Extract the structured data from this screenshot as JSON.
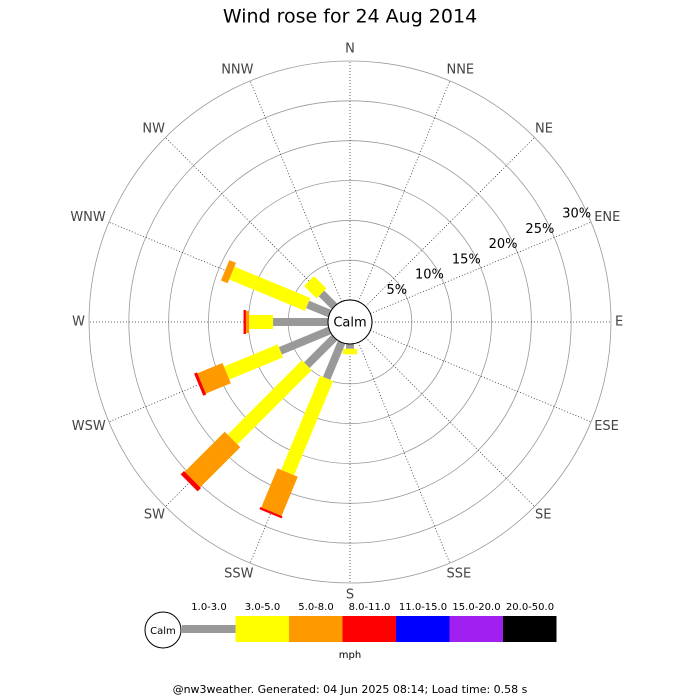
{
  "chart_data": {
    "type": "windrose",
    "title": "Wind rose for 24 Aug 2014",
    "calm_label": "Calm",
    "unit_label": "mph",
    "footer": "@nw3weather. Generated: 04 Jun 2025 08:14; Load time: 0.58 s",
    "categories": [
      "N",
      "NNE",
      "NE",
      "ENE",
      "E",
      "ESE",
      "SE",
      "SSE",
      "S",
      "SSW",
      "SW",
      "WSW",
      "W",
      "WNW",
      "NW",
      "NNW"
    ],
    "rlim": [
      0,
      30
    ],
    "rticks": [
      {
        "value": 5,
        "label": "5%"
      },
      {
        "value": 10,
        "label": "10%"
      },
      {
        "value": 15,
        "label": "15%"
      },
      {
        "value": 20,
        "label": "20%"
      },
      {
        "value": 25,
        "label": "25%"
      },
      {
        "value": 30,
        "label": "30%"
      }
    ],
    "series": [
      {
        "name": "1.0-3.0",
        "color": "#999999",
        "values": [
          0,
          0,
          0,
          0,
          0,
          0,
          0,
          0,
          0.6,
          4.9,
          4.9,
          6.7,
          6.9,
          3.0,
          2.3,
          0
        ]
      },
      {
        "name": "3.0-5.0",
        "color": "#ffff00",
        "values": [
          0,
          0,
          0,
          0,
          0,
          0,
          0,
          0,
          0.7,
          12.8,
          13.2,
          7.3,
          3.0,
          10.3,
          2.2,
          0
        ]
      },
      {
        "name": "5.0-8.0",
        "color": "#ff9900",
        "values": [
          0,
          0,
          0,
          0,
          0,
          0,
          0,
          0,
          0,
          5.3,
          7.1,
          3.4,
          0.4,
          0.9,
          0,
          0
        ]
      },
      {
        "name": "8.0-11.0",
        "color": "#ff0000",
        "values": [
          0,
          0,
          0,
          0,
          0,
          0,
          0,
          0,
          0,
          0.3,
          0.6,
          0.4,
          0.3,
          0,
          0,
          0
        ]
      },
      {
        "name": "11.0-15.0",
        "color": "#0000ff",
        "values": [
          0,
          0,
          0,
          0,
          0,
          0,
          0,
          0,
          0,
          0,
          0,
          0,
          0,
          0,
          0,
          0
        ]
      },
      {
        "name": "15.0-20.0",
        "color": "#a020f0",
        "values": [
          0,
          0,
          0,
          0,
          0,
          0,
          0,
          0,
          0,
          0,
          0,
          0,
          0,
          0,
          0,
          0
        ]
      },
      {
        "name": "20.0-50.0",
        "color": "#000000",
        "values": [
          0,
          0,
          0,
          0,
          0,
          0,
          0,
          0,
          0,
          0,
          0,
          0,
          0,
          0,
          0,
          0
        ]
      }
    ]
  }
}
